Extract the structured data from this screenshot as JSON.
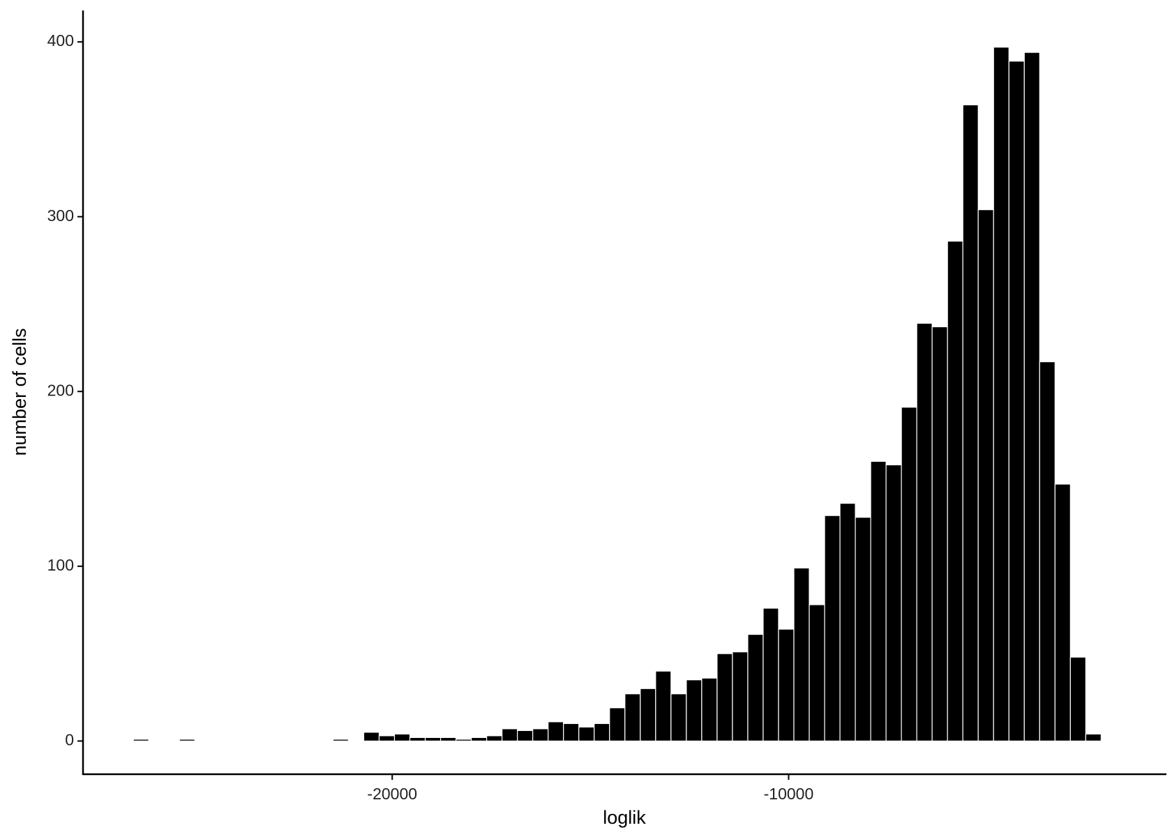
{
  "chart_data": {
    "type": "histogram",
    "x_label": "loglik",
    "y_label": "number of cells",
    "bins": [
      -26530,
      -26142.5,
      -25755,
      -25367.5,
      -24980,
      -24592.5,
      -24205,
      -23817.5,
      -23430,
      -23042.5,
      -22655,
      -22267.5,
      -21880,
      -21492.5,
      -21105,
      -20717.5,
      -20330,
      -19942.5,
      -19555,
      -19167.5,
      -18780,
      -18392.5,
      -18005,
      -17617.5,
      -17230,
      -16842.5,
      -16455,
      -16067.5,
      -15680,
      -15292.5,
      -14905,
      -14517.5,
      -14130,
      -13742.5,
      -13355,
      -12967.5,
      -12580,
      -12192.5,
      -11805,
      -11417.5,
      -11030,
      -10642.5,
      -10255,
      -9867.5,
      -9480,
      -9092.5,
      -8705,
      -8317.5,
      -7930,
      -7542.5,
      -7155,
      -6767.5,
      -6380,
      -5992.5,
      -5605,
      -5217.5,
      -4830,
      -4442.5,
      -4055,
      -3667.5,
      -3280,
      -2892.5,
      -2505,
      -2117.5,
      -1730
    ],
    "values": [
      1,
      0,
      0,
      1,
      0,
      0,
      0,
      0,
      0,
      0,
      0,
      0,
      0,
      1,
      0,
      5,
      3,
      4,
      2,
      2,
      2,
      1,
      2,
      3,
      7,
      6,
      7,
      11,
      10,
      8,
      10,
      19,
      27,
      30,
      40,
      27,
      35,
      36,
      50,
      51,
      61,
      76,
      64,
      99,
      78,
      129,
      136,
      128,
      160,
      158,
      191,
      239,
      237,
      286,
      364,
      304,
      397,
      389,
      394,
      217,
      147,
      48,
      4,
      0
    ],
    "color": "#000000",
    "xlim": [
      -27800,
      -470
    ],
    "xticks": [
      -20000,
      -10000
    ],
    "ylim": [
      -19,
      418
    ],
    "yticks": [
      0,
      100,
      200,
      300,
      400
    ],
    "grid": false
  }
}
